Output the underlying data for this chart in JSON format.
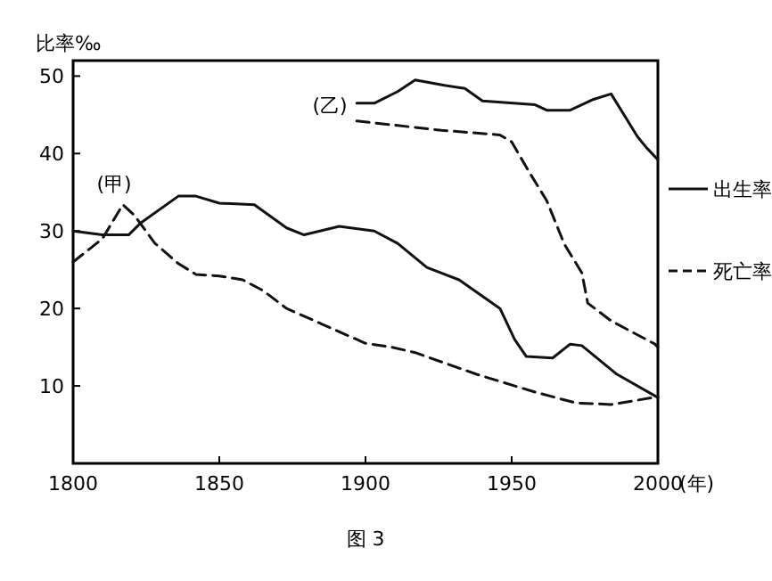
{
  "chart_data": {
    "type": "line",
    "ylabel": "比率‰",
    "xlabel": "(年)",
    "xlim": [
      1800,
      2000
    ],
    "xticks": [
      1800,
      1850,
      1900,
      1950,
      2000
    ],
    "ylim": [
      0,
      52
    ],
    "yticks": [
      10,
      20,
      30,
      40,
      50
    ],
    "grid": false,
    "legend": "right",
    "marker": "none",
    "series": [
      {
        "name": "出生率",
        "color": "#111111",
        "line_style": "solid",
        "x": [
          1800,
          1810,
          1819,
          1823,
          1836,
          1842,
          1850,
          1862,
          1873,
          1879,
          1891,
          1903,
          1911,
          1921,
          1932,
          1946,
          1951,
          1955,
          1964,
          1970,
          1974,
          1986,
          2000
        ],
        "values": [
          30,
          29.5,
          29.5,
          31,
          34.5,
          34.5,
          33.6,
          33.4,
          30.4,
          29.5,
          30.6,
          30,
          28.4,
          25.3,
          23.7,
          20,
          16,
          13.8,
          13.6,
          15.4,
          15.2,
          11.5,
          8.5
        ]
      },
      {
        "name": "死亡率",
        "color": "#111111",
        "line_style": "dashed",
        "x": [
          1800,
          1810,
          1817,
          1821,
          1828,
          1836,
          1842,
          1850,
          1858,
          1865,
          1873,
          1885,
          1900,
          1909,
          1917,
          1938,
          1958,
          1972,
          1984,
          2000
        ],
        "values": [
          26,
          29,
          33.4,
          32,
          28.4,
          25.8,
          24.4,
          24.2,
          23.7,
          22.3,
          20,
          18,
          15.5,
          15,
          14.3,
          11.5,
          9.2,
          7.8,
          7.6,
          8.6
        ]
      },
      {
        "color": "#111111",
        "line_style": "solid",
        "x": [
          1897,
          1903,
          1911,
          1917,
          1927,
          1934,
          1940,
          1958,
          1962,
          1970,
          1978,
          1984,
          1993,
          1996,
          2000
        ],
        "values": [
          46.5,
          46.5,
          48,
          49.5,
          48.8,
          48.4,
          46.8,
          46.3,
          45.6,
          45.6,
          47,
          47.7,
          42.2,
          40.8,
          39.2
        ]
      },
      {
        "color": "#111111",
        "line_style": "dashed",
        "x": [
          1897,
          1926,
          1946,
          1950,
          1956,
          1962,
          1968,
          1974,
          1976,
          1984,
          1999,
          2000
        ],
        "values": [
          44.2,
          43,
          42.4,
          41.5,
          37.6,
          33.9,
          28.3,
          24.6,
          20.7,
          18.4,
          15.4,
          15
        ]
      }
    ],
    "annotations": [
      "(甲)",
      "(乙)",
      "图 3"
    ]
  }
}
